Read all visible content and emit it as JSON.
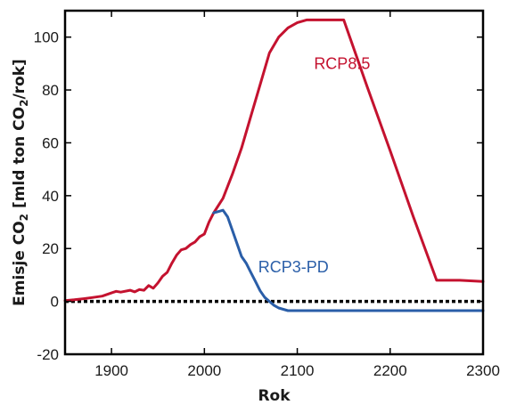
{
  "chart_data": {
    "type": "line",
    "title": "",
    "xlabel": "Rok",
    "ylabel": "Emisje CO₂ [mld ton CO₂/rok]",
    "ylabel_parts": [
      "Emisje CO",
      "2",
      " [mld ton CO",
      "2",
      "/rok]"
    ],
    "xlim": [
      1850,
      2300
    ],
    "ylim": [
      -20,
      110
    ],
    "x_ticks": [
      1900,
      2000,
      2100,
      2200,
      2300
    ],
    "y_ticks": [
      -20,
      0,
      20,
      40,
      60,
      80,
      100
    ],
    "grid": false,
    "series": [
      {
        "name": "RCP8.5",
        "color": "#c4122f",
        "label_at": [
          2118,
          88
        ],
        "x": [
          1850,
          1860,
          1870,
          1880,
          1890,
          1900,
          1905,
          1910,
          1920,
          1925,
          1930,
          1935,
          1940,
          1945,
          1950,
          1955,
          1960,
          1965,
          1970,
          1975,
          1980,
          1985,
          1990,
          1995,
          2000,
          2005,
          2010,
          2020,
          2030,
          2040,
          2050,
          2060,
          2070,
          2080,
          2090,
          2100,
          2110,
          2120,
          2130,
          2140,
          2150,
          2175,
          2200,
          2225,
          2250,
          2275,
          2300
        ],
        "values": [
          0.3,
          0.6,
          1.0,
          1.5,
          2.0,
          3.2,
          3.8,
          3.5,
          4.2,
          3.6,
          4.5,
          4.2,
          6.0,
          5.0,
          7.0,
          9.5,
          11,
          14.5,
          17.5,
          19.5,
          20,
          21.5,
          22.5,
          24.5,
          25.5,
          30,
          33.5,
          39,
          48,
          58,
          70,
          82,
          94,
          100,
          103.5,
          105.5,
          106.5,
          106.5,
          106.5,
          106.5,
          106.5,
          81.5,
          57,
          32,
          8,
          8,
          7.5
        ]
      },
      {
        "name": "RCP3-PD",
        "color": "#2a5ea8",
        "label_at": [
          2058,
          11
        ],
        "x": [
          2010,
          2015,
          2020,
          2025,
          2030,
          2035,
          2040,
          2045,
          2050,
          2055,
          2060,
          2065,
          2070,
          2075,
          2080,
          2085,
          2090,
          2100,
          2150,
          2200,
          2250,
          2300
        ],
        "values": [
          33.5,
          34,
          34.5,
          32,
          27,
          22,
          17,
          14.5,
          11,
          7.5,
          4,
          1.5,
          0,
          -1.5,
          -2.5,
          -3,
          -3.5,
          -3.5,
          -3.5,
          -3.5,
          -3.5,
          -3.5
        ]
      }
    ],
    "reference_lines": [
      {
        "y": 0,
        "style": "dotted",
        "color": "#000000"
      }
    ]
  }
}
